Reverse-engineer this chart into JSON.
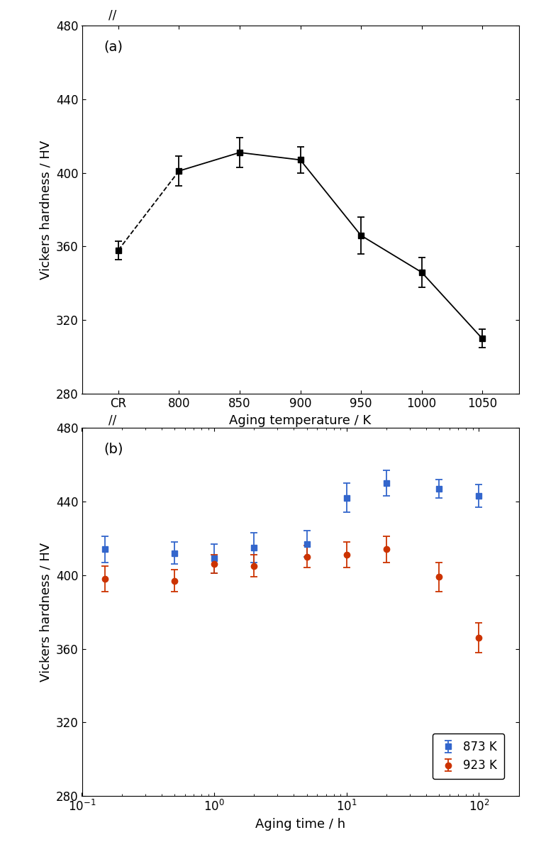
{
  "panel_a": {
    "label": "(a)",
    "x_labels": [
      "CR",
      "800",
      "850",
      "900",
      "950",
      "1000",
      "1050"
    ],
    "x_positions": [
      0,
      1,
      2,
      3,
      4,
      5,
      6
    ],
    "data_x": [
      0,
      1.2,
      2.0,
      3.0,
      4.0,
      5.0,
      6.0
    ],
    "y_values": [
      358,
      401,
      411,
      407,
      366,
      346,
      310
    ],
    "y_errors": [
      5,
      8,
      8,
      7,
      10,
      8,
      5
    ],
    "ylabel": "Vickers hardness / HV",
    "xlabel": "Aging temperature / K",
    "ylim": [
      280,
      480
    ],
    "yticks": [
      280,
      320,
      360,
      400,
      440,
      480
    ],
    "color": "#000000"
  },
  "panel_b": {
    "label": "(b)",
    "series_873K": {
      "x": [
        0.15,
        0.5,
        1.0,
        2.0,
        5.0,
        10.0,
        20.0,
        50.0,
        100.0
      ],
      "y": [
        414,
        412,
        409,
        415,
        417,
        442,
        450,
        447,
        443
      ],
      "yerr": [
        7,
        6,
        8,
        8,
        7,
        8,
        7,
        5,
        6
      ],
      "color": "#3366cc",
      "label": "873 K",
      "marker": "s"
    },
    "series_923K": {
      "x": [
        0.15,
        0.5,
        1.0,
        2.0,
        5.0,
        10.0,
        20.0,
        50.0,
        100.0
      ],
      "y": [
        398,
        397,
        406,
        405,
        410,
        411,
        414,
        399,
        366
      ],
      "yerr": [
        7,
        6,
        5,
        6,
        6,
        7,
        7,
        8,
        8
      ],
      "color": "#cc3300",
      "label": "923 K",
      "marker": "o"
    },
    "ylabel": "Vickers hardness / HV",
    "xlabel": "Aging time / h",
    "ylim": [
      280,
      480
    ],
    "yticks": [
      280,
      320,
      360,
      400,
      440,
      480
    ]
  }
}
